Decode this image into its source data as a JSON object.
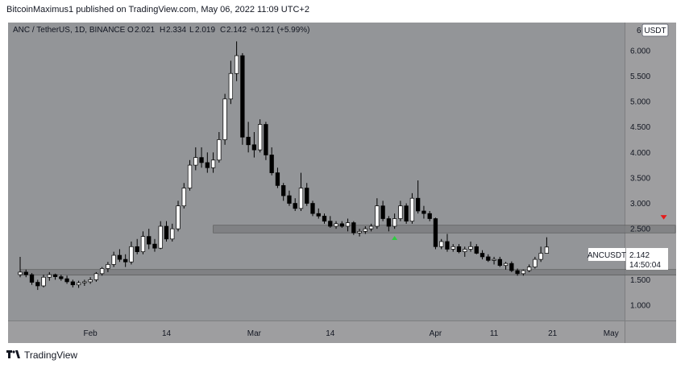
{
  "header": {
    "published_by": "BitcoinMaximus1 published on TradingView.com, May 06, 2022 11:09 UTC+2"
  },
  "legend": {
    "symbol": "ANC / TetherUS, 1D, BINANCE",
    "o_label": "O",
    "o_value": "2.021",
    "h_label": "H",
    "h_value": "2.334",
    "l_label": "L",
    "l_value": "2.019",
    "c_label": "C",
    "c_value": "2.142",
    "change": "+0.121 (+5.99%)"
  },
  "price_axis": {
    "currency": "USDT",
    "top_label": "6"
  },
  "last_price": {
    "symbol": "ANCUSDT",
    "price": "2.142",
    "countdown": "14:50:04"
  },
  "footer": {
    "brand": "TradingView"
  },
  "colors": {
    "plot_bg": "#939598",
    "axis_bg": "#9e9ea0",
    "bull": "#ffffff",
    "bear": "#000000",
    "zone": "#7a7b7e",
    "green_marker": "#2ecc40",
    "red_marker": "#e51b1b"
  },
  "chart_data": {
    "type": "candlestick",
    "title": "",
    "ylim": [
      0.7,
      6.55
    ],
    "y_ticks": [
      1.0,
      1.5,
      2.0,
      2.5,
      3.0,
      3.5,
      4.0,
      4.5,
      5.0,
      5.5,
      6.0
    ],
    "y_tick_labels": [
      "1.000",
      "1.500",
      "2.000",
      "2.500",
      "3.000",
      "3.500",
      "4.000",
      "4.500",
      "5.000",
      "5.500",
      "6.000"
    ],
    "x_tick_labels": [
      {
        "label": "Feb",
        "date": "2022-02-01"
      },
      {
        "label": "14",
        "date": "2022-02-14"
      },
      {
        "label": "Mar",
        "date": "2022-03-01"
      },
      {
        "label": "14",
        "date": "2022-03-14"
      },
      {
        "label": "Apr",
        "date": "2022-04-01"
      },
      {
        "label": "11",
        "date": "2022-04-11"
      },
      {
        "label": "21",
        "date": "2022-04-21"
      },
      {
        "label": "May",
        "date": "2022-05-01"
      }
    ],
    "first_date": "2022-01-20",
    "zones": [
      {
        "from": 2.42,
        "to": 2.57,
        "start_date": "2022-02-22",
        "end_date": "2022-05-12"
      },
      {
        "from": 1.59,
        "to": 1.7,
        "start_date": "2022-01-20",
        "end_date": "2022-05-14"
      }
    ],
    "markers": [
      {
        "kind": "up-arrow",
        "color": "green",
        "date": "2022-03-25",
        "price": 2.32
      },
      {
        "kind": "down-arrow",
        "color": "red",
        "date": "2022-05-10",
        "price": 2.73
      }
    ],
    "ohlc": [
      [
        1.6,
        1.95,
        1.55,
        1.65
      ],
      [
        1.65,
        1.7,
        1.55,
        1.6
      ],
      [
        1.6,
        1.63,
        1.4,
        1.45
      ],
      [
        1.45,
        1.5,
        1.3,
        1.38
      ],
      [
        1.38,
        1.6,
        1.35,
        1.55
      ],
      [
        1.55,
        1.65,
        1.48,
        1.6
      ],
      [
        1.6,
        1.62,
        1.5,
        1.56
      ],
      [
        1.56,
        1.6,
        1.48,
        1.52
      ],
      [
        1.52,
        1.58,
        1.42,
        1.46
      ],
      [
        1.46,
        1.5,
        1.35,
        1.4
      ],
      [
        1.4,
        1.48,
        1.34,
        1.44
      ],
      [
        1.44,
        1.5,
        1.38,
        1.46
      ],
      [
        1.46,
        1.55,
        1.42,
        1.5
      ],
      [
        1.5,
        1.65,
        1.46,
        1.62
      ],
      [
        1.62,
        1.75,
        1.58,
        1.72
      ],
      [
        1.72,
        1.85,
        1.65,
        1.8
      ],
      [
        1.8,
        2.05,
        1.75,
        1.98
      ],
      [
        1.98,
        2.1,
        1.85,
        1.9
      ],
      [
        1.9,
        2.0,
        1.75,
        1.85
      ],
      [
        1.85,
        2.25,
        1.8,
        2.15
      ],
      [
        2.15,
        2.3,
        2.0,
        2.05
      ],
      [
        2.05,
        2.45,
        2.0,
        2.35
      ],
      [
        2.35,
        2.5,
        2.1,
        2.2
      ],
      [
        2.2,
        2.3,
        2.05,
        2.12
      ],
      [
        2.12,
        2.65,
        2.1,
        2.55
      ],
      [
        2.55,
        2.65,
        2.25,
        2.3
      ],
      [
        2.3,
        2.6,
        2.25,
        2.5
      ],
      [
        2.5,
        3.05,
        2.45,
        2.95
      ],
      [
        2.95,
        3.4,
        2.9,
        3.3
      ],
      [
        3.3,
        3.85,
        3.25,
        3.75
      ],
      [
        3.75,
        4.1,
        3.65,
        3.9
      ],
      [
        3.9,
        4.1,
        3.7,
        3.8
      ],
      [
        3.8,
        4.0,
        3.6,
        3.7
      ],
      [
        3.7,
        4.0,
        3.6,
        3.85
      ],
      [
        3.85,
        4.4,
        3.8,
        4.25
      ],
      [
        4.25,
        5.15,
        4.15,
        5.05
      ],
      [
        5.05,
        5.8,
        4.95,
        5.55
      ],
      [
        5.55,
        6.18,
        5.4,
        5.9
      ],
      [
        5.9,
        5.95,
        4.15,
        4.3
      ],
      [
        4.3,
        4.6,
        4.0,
        4.15
      ],
      [
        4.15,
        4.4,
        3.9,
        4.05
      ],
      [
        4.05,
        4.65,
        4.0,
        4.55
      ],
      [
        4.55,
        4.6,
        3.85,
        3.95
      ],
      [
        3.95,
        4.1,
        3.55,
        3.6
      ],
      [
        3.6,
        3.7,
        3.3,
        3.35
      ],
      [
        3.35,
        3.4,
        3.05,
        3.15
      ],
      [
        3.15,
        3.25,
        2.95,
        3.0
      ],
      [
        3.0,
        3.1,
        2.85,
        2.9
      ],
      [
        2.9,
        3.6,
        2.85,
        3.3
      ],
      [
        3.3,
        3.4,
        2.95,
        3.0
      ],
      [
        3.0,
        3.05,
        2.75,
        2.8
      ],
      [
        2.8,
        2.9,
        2.7,
        2.75
      ],
      [
        2.75,
        2.8,
        2.6,
        2.65
      ],
      [
        2.65,
        2.75,
        2.52,
        2.55
      ],
      [
        2.55,
        2.65,
        2.5,
        2.6
      ],
      [
        2.6,
        2.65,
        2.52,
        2.55
      ],
      [
        2.55,
        2.7,
        2.45,
        2.62
      ],
      [
        2.62,
        2.65,
        2.38,
        2.42
      ],
      [
        2.42,
        2.5,
        2.35,
        2.45
      ],
      [
        2.45,
        2.55,
        2.4,
        2.5
      ],
      [
        2.5,
        2.6,
        2.45,
        2.55
      ],
      [
        2.55,
        3.1,
        2.5,
        2.95
      ],
      [
        2.95,
        3.05,
        2.65,
        2.7
      ],
      [
        2.7,
        2.75,
        2.45,
        2.55
      ],
      [
        2.55,
        2.8,
        2.5,
        2.7
      ],
      [
        2.7,
        3.05,
        2.65,
        2.95
      ],
      [
        2.95,
        3.0,
        2.6,
        2.65
      ],
      [
        2.65,
        3.2,
        2.6,
        3.1
      ],
      [
        3.1,
        3.45,
        2.8,
        2.85
      ],
      [
        2.85,
        2.95,
        2.7,
        2.8
      ],
      [
        2.8,
        2.85,
        2.65,
        2.7
      ],
      [
        2.7,
        2.72,
        2.1,
        2.15
      ],
      [
        2.15,
        2.3,
        2.1,
        2.25
      ],
      [
        2.25,
        2.4,
        2.05,
        2.1
      ],
      [
        2.1,
        2.2,
        2.05,
        2.15
      ],
      [
        2.15,
        2.2,
        2.02,
        2.05
      ],
      [
        2.05,
        2.15,
        1.95,
        2.1
      ],
      [
        2.1,
        2.25,
        2.05,
        2.15
      ],
      [
        2.15,
        2.2,
        2.0,
        2.02
      ],
      [
        2.02,
        2.08,
        1.9,
        1.95
      ],
      [
        1.95,
        2.0,
        1.85,
        1.88
      ],
      [
        1.88,
        1.95,
        1.8,
        1.9
      ],
      [
        1.9,
        1.95,
        1.75,
        1.78
      ],
      [
        1.78,
        1.85,
        1.7,
        1.82
      ],
      [
        1.82,
        1.86,
        1.65,
        1.68
      ],
      [
        1.68,
        1.72,
        1.58,
        1.62
      ],
      [
        1.62,
        1.7,
        1.58,
        1.68
      ],
      [
        1.68,
        1.8,
        1.65,
        1.75
      ],
      [
        1.75,
        1.95,
        1.72,
        1.9
      ],
      [
        1.9,
        2.15,
        1.85,
        2.02
      ],
      [
        2.02,
        2.334,
        2.019,
        2.142
      ]
    ]
  }
}
